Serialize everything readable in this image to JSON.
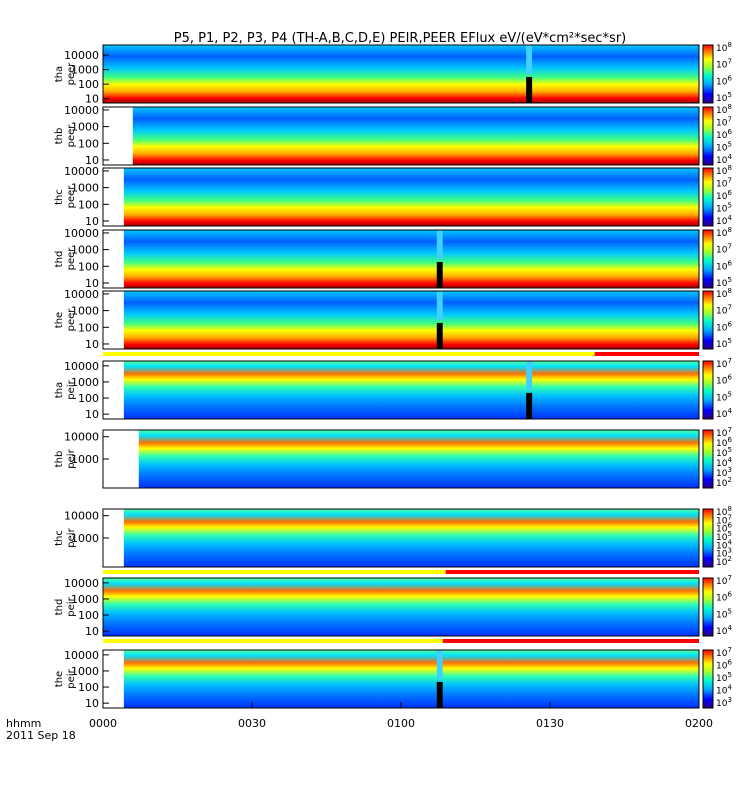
{
  "chart_data": {
    "type": "heatmap",
    "title": "P5, P1, P2, P3, P4 (TH-A,B,C,D,E) PEIR,PEER EFlux eV/(eV*cm²*sec*sr)",
    "x_time_label": "hhmm",
    "x_date_label": "2011 Sep 18",
    "x_ticks": [
      "0000",
      "0030",
      "0100",
      "0130",
      "0200"
    ],
    "x_range_hours": [
      0,
      2
    ],
    "y_scale": "log",
    "colormap": "rainbow",
    "panels": [
      {
        "probe": "tha",
        "species": "peer",
        "yticks": [
          "10000",
          "1000",
          "100",
          "10"
        ],
        "ylim": [
          5,
          50000
        ],
        "cbar_max_exp": 8,
        "cbar_exps": [
          8,
          7,
          6,
          5
        ],
        "data_start_hour": 0.0,
        "gap_hours": [
          1.42,
          1.44
        ],
        "flag": null
      },
      {
        "probe": "thb",
        "species": "peer",
        "yticks": [
          "10000",
          "1000",
          "100",
          "10"
        ],
        "ylim": [
          5,
          15000
        ],
        "cbar_max_exp": 8,
        "cbar_exps": [
          8,
          7,
          6,
          5,
          4
        ],
        "data_start_hour": 0.1,
        "gap_hours": null,
        "flag": null
      },
      {
        "probe": "thc",
        "species": "peer",
        "yticks": [
          "10000",
          "1000",
          "100",
          "10"
        ],
        "ylim": [
          5,
          15000
        ],
        "cbar_max_exp": 8,
        "cbar_exps": [
          8,
          7,
          6,
          5,
          4
        ],
        "data_start_hour": 0.07,
        "gap_hours": null,
        "flag": null
      },
      {
        "probe": "thd",
        "species": "peer",
        "yticks": [
          "10000",
          "1000",
          "100",
          "10"
        ],
        "ylim": [
          5,
          15000
        ],
        "cbar_max_exp": 8,
        "cbar_exps": [
          8,
          7,
          6,
          5
        ],
        "data_start_hour": 0.07,
        "gap_hours": [
          1.12,
          1.14
        ],
        "flag": null
      },
      {
        "probe": "the",
        "species": "peer",
        "yticks": [
          "10000",
          "1000",
          "100",
          "10"
        ],
        "ylim": [
          5,
          15000
        ],
        "cbar_max_exp": 8,
        "cbar_exps": [
          8,
          7,
          6,
          5
        ],
        "data_start_hour": 0.07,
        "gap_hours": [
          1.12,
          1.14
        ],
        "flag": [
          1.65,
          2.0
        ]
      },
      {
        "probe": "tha",
        "species": "peir",
        "yticks": [
          "10000",
          "1000",
          "100",
          "10"
        ],
        "ylim": [
          5,
          20000
        ],
        "cbar_max_exp": 7,
        "cbar_exps": [
          7,
          6,
          5,
          4
        ],
        "data_start_hour": 0.07,
        "gap_hours": [
          1.42,
          1.44
        ],
        "flag": null
      },
      {
        "probe": "thb",
        "species": "peir",
        "yticks": [
          "10000",
          "1000"
        ],
        "ylim": [
          50,
          20000
        ],
        "cbar_max_exp": 7,
        "cbar_exps": [
          7,
          6,
          5,
          4,
          3,
          2
        ],
        "data_start_hour": 0.12,
        "gap_hours": null,
        "flag": null
      },
      {
        "probe": "thc",
        "species": "peir",
        "yticks": [
          "10000",
          "1000"
        ],
        "ylim": [
          50,
          20000
        ],
        "cbar_max_exp": 8,
        "cbar_exps": [
          8,
          7,
          6,
          5,
          4,
          3,
          2
        ],
        "data_start_hour": 0.07,
        "gap_hours": null,
        "flag": [
          1.15,
          2.0
        ]
      },
      {
        "probe": "thd",
        "species": "peir",
        "yticks": [
          "10000",
          "1000",
          "100",
          "10"
        ],
        "ylim": [
          5,
          20000
        ],
        "cbar_max_exp": 7,
        "cbar_exps": [
          7,
          6,
          5,
          4
        ],
        "data_start_hour": 0.0,
        "gap_hours": null,
        "flag": [
          1.14,
          2.0
        ]
      },
      {
        "probe": "the",
        "species": "peir",
        "yticks": [
          "10000",
          "1000",
          "100",
          "10"
        ],
        "ylim": [
          5,
          20000
        ],
        "cbar_max_exp": 7,
        "cbar_exps": [
          7,
          6,
          5,
          4,
          3
        ],
        "data_start_hour": 0.07,
        "gap_hours": [
          1.12,
          1.14
        ],
        "flag": null
      }
    ]
  }
}
